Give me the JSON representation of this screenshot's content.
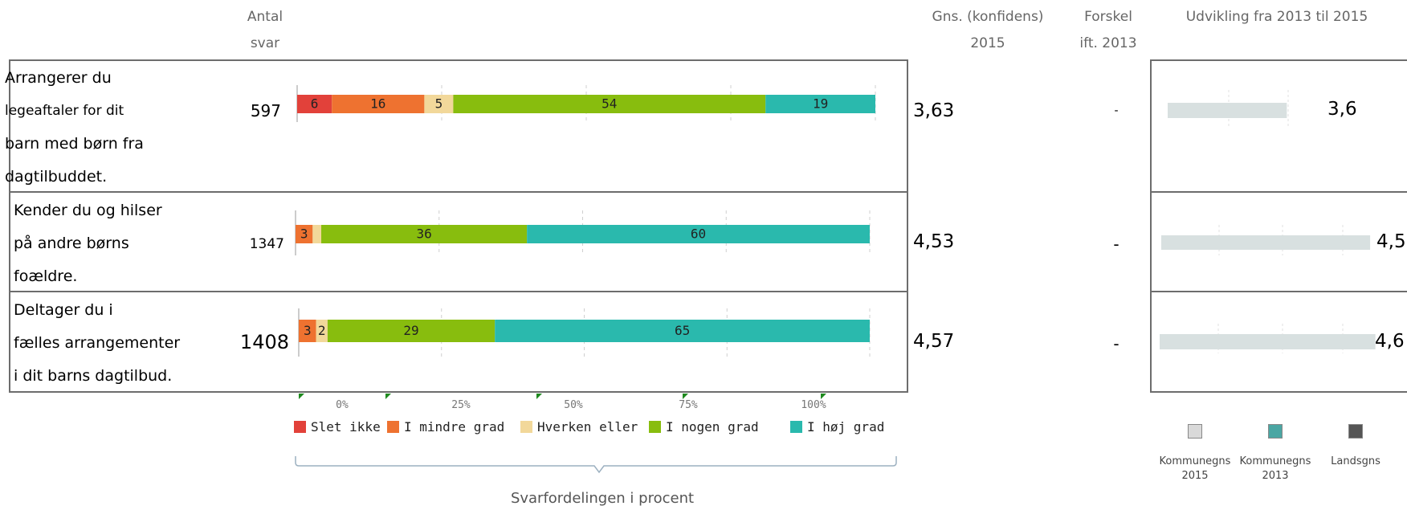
{
  "headers": {
    "count_line1": "Antal",
    "count_line2": "svar",
    "mean_line1": "Gns. (konfidens)",
    "mean_line2": "2015",
    "diff_line1": "Forskel",
    "diff_line2": "ift. 2013",
    "trend": "Udvikling fra 2013 til 2015"
  },
  "questions": [
    {
      "text_lines": [
        "Arrangerer du",
        "legeaftaler for dit",
        "barn med børn fra",
        "dagtilbuddet."
      ],
      "count": "597",
      "mean": "3,63",
      "diff": "-",
      "trend_value": "3,6"
    },
    {
      "text_lines": [
        "Kender du og hilser",
        "på andre børns",
        "foældre."
      ],
      "count": "1347",
      "mean": "4,53",
      "diff": "-",
      "trend_value": "4,5"
    },
    {
      "text_lines": [
        "Deltager du i",
        "fælles arrangementer",
        "i dit barns dagtilbud."
      ],
      "count": "1408",
      "mean": "4,57",
      "diff": "-",
      "trend_value": "4,6"
    }
  ],
  "chart_data": {
    "type": "bar",
    "orientation": "horizontal-stacked-percent",
    "categories": [
      "Arrangerer du legeaftaler for dit barn med børn fra dagtilbuddet.",
      "Kender du og hilser på andre børns foældre.",
      "Deltager du i fælles arrangementer i dit barns dagtilbud."
    ],
    "series": [
      {
        "name": "Slet ikke",
        "color": "#e2413a",
        "values": [
          6,
          0,
          0
        ],
        "labels": [
          "6",
          "",
          ""
        ]
      },
      {
        "name": "I mindre grad",
        "color": "#ee7230",
        "values": [
          16,
          3,
          3
        ],
        "labels": [
          "16",
          "3",
          "3"
        ]
      },
      {
        "name": "Hverken eller",
        "color": "#f2d89a",
        "values": [
          5,
          1.5,
          2
        ],
        "labels": [
          "5",
          "",
          "2"
        ]
      },
      {
        "name": "I nogen grad",
        "color": "#88bd0e",
        "values": [
          54,
          36,
          29
        ],
        "labels": [
          "54",
          "36",
          "29"
        ]
      },
      {
        "name": "I høj grad",
        "color": "#2ab9ad",
        "values": [
          19,
          60,
          65
        ],
        "labels": [
          "19",
          "60",
          "65"
        ]
      }
    ],
    "x_ticks": [
      "0%",
      "25%",
      "50%",
      "75%",
      "100%"
    ],
    "xlim": [
      0,
      100
    ],
    "xlabel": "Svarfordelingen i procent",
    "legend_position": "bottom"
  },
  "trend_chart": {
    "type": "bar",
    "values_2015": [
      3.6,
      4.5,
      4.6
    ],
    "xlim": [
      0,
      5
    ],
    "colors": {
      "kommune_2015": "#d8e0e0",
      "kommune_2013": "#2ea8a0",
      "lands": "#555555"
    }
  },
  "right_legend": [
    {
      "label_line1": "Kommunegns",
      "label_line2": "2015",
      "color": "#d9d9d9"
    },
    {
      "label_line1": "Kommunegns",
      "label_line2": "2013",
      "color": "#4aa6a3"
    },
    {
      "label_line1": "Landsgns",
      "label_line2": "",
      "color": "#555555"
    }
  ]
}
